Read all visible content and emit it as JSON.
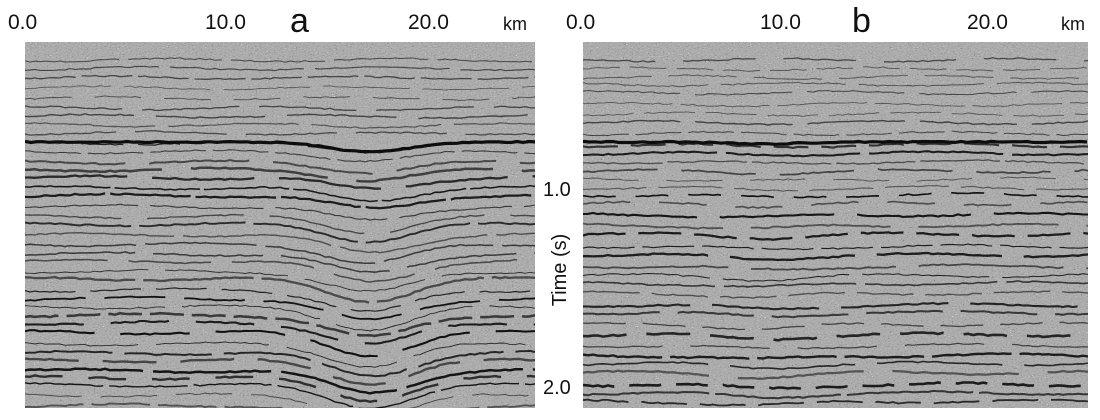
{
  "panels": [
    {
      "letter": "a",
      "x_axis": {
        "ticks": [
          "0.0",
          "10.0",
          "20.0"
        ],
        "unit": "km"
      }
    },
    {
      "letter": "b",
      "x_axis": {
        "ticks": [
          "0.0",
          "10.0",
          "20.0"
        ],
        "unit": "km"
      }
    }
  ],
  "time_axis": {
    "label": "Time (s)",
    "ticks": [
      "1.0",
      "2.0"
    ]
  },
  "colors": {
    "ink": "#111111",
    "background": "#ffffff",
    "trace_gray": "#9a9a9a"
  }
}
